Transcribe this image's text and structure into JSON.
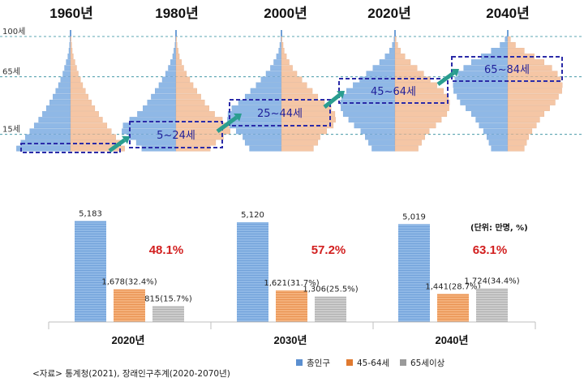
{
  "pyramids": {
    "years": [
      "1960년",
      "1980년",
      "2000년",
      "2020년",
      "2040년"
    ],
    "age_labels": [
      "100세",
      "65세",
      "15세"
    ],
    "age_values": [
      100,
      65,
      15
    ],
    "highlight_labels": [
      "",
      "5~24세",
      "25~44세",
      "45~64세",
      "65~84세"
    ],
    "shapes": [
      [
        0.98,
        0.9,
        0.82,
        0.74,
        0.66,
        0.58,
        0.51,
        0.44,
        0.38,
        0.32,
        0.27,
        0.22,
        0.18,
        0.14,
        0.11,
        0.08,
        0.05,
        0.03,
        0.02,
        0.01
      ],
      [
        0.62,
        0.72,
        0.86,
        0.98,
        0.96,
        0.84,
        0.7,
        0.6,
        0.52,
        0.45,
        0.38,
        0.31,
        0.25,
        0.19,
        0.14,
        0.1,
        0.06,
        0.04,
        0.02,
        0.01
      ],
      [
        0.58,
        0.66,
        0.7,
        0.82,
        0.94,
        0.98,
        0.97,
        0.9,
        0.78,
        0.66,
        0.56,
        0.46,
        0.37,
        0.28,
        0.2,
        0.14,
        0.09,
        0.05,
        0.03,
        0.01
      ],
      [
        0.42,
        0.48,
        0.54,
        0.62,
        0.74,
        0.84,
        0.94,
        0.98,
        0.99,
        0.97,
        0.88,
        0.76,
        0.64,
        0.52,
        0.4,
        0.28,
        0.18,
        0.1,
        0.05,
        0.02
      ],
      [
        0.3,
        0.34,
        0.38,
        0.44,
        0.52,
        0.58,
        0.66,
        0.76,
        0.86,
        0.92,
        0.98,
        0.99,
        0.96,
        0.9,
        0.8,
        0.66,
        0.48,
        0.3,
        0.14,
        0.05
      ]
    ]
  },
  "chart_data": {
    "type": "bar",
    "categories": [
      "2020년",
      "2030년",
      "2040년"
    ],
    "series": [
      {
        "name": "총인구",
        "values": [
          5183,
          5120,
          5019
        ],
        "labels": [
          "5,183",
          "5,120",
          "5,019"
        ],
        "color": "#8fb8e6",
        "stripe": "#5b8fd0"
      },
      {
        "name": "45-64세",
        "values": [
          1678,
          1621,
          1441
        ],
        "labels": [
          "1,678(32.4%)",
          "1,621(31.7%)",
          "1,441(28.7%)"
        ],
        "color": "#f4b07a",
        "stripe": "#e07a30"
      },
      {
        "name": "65세이상",
        "values": [
          815,
          1306,
          1724
        ],
        "labels": [
          "815(15.7%)",
          "1,306(25.5%)",
          "1,724(34.4%)"
        ],
        "color": "#cccccc",
        "stripe": "#9a9a9a"
      }
    ],
    "share_45plus": [
      "48.1%",
      "57.2%",
      "63.1%"
    ],
    "ylim": [
      0,
      5700
    ],
    "unit": "(단위: 만명, %)",
    "legend_position": "bottom-right"
  },
  "source": "<자료> 통계청(2021), 장래인구추계(2020-2070년)",
  "colors": {
    "male": "#8fb8e6",
    "female": "#f5c6a5",
    "box": "#2b2ba8",
    "arrow": "#2a9d8f",
    "dashline": "#2a8a9a"
  }
}
